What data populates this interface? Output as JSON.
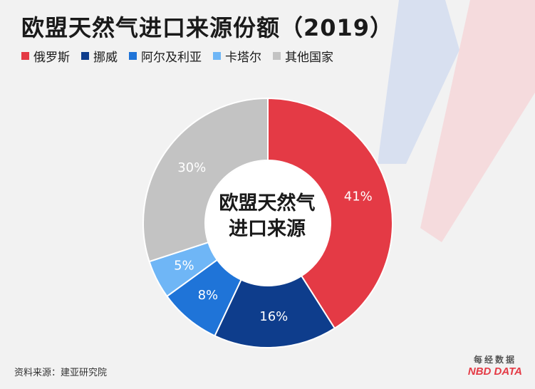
{
  "title": "欧盟天然气进口来源份额（2019）",
  "center_label_line1": "欧盟天然气",
  "center_label_line2": "进口来源",
  "source": "资料来源：建亚研究院",
  "logo": {
    "cn": "每经数据",
    "en": "NBD DATA"
  },
  "colors": {
    "background": "#f2f2f2",
    "brand_red": "#e43a45"
  },
  "chart_data": {
    "type": "pie",
    "donut": true,
    "title": "欧盟天然气进口来源份额（2019）",
    "legend_position": "top-left",
    "categories": [
      "俄罗斯",
      "挪威",
      "阿尔及利亚",
      "卡塔尔",
      "其他国家"
    ],
    "values": [
      41,
      16,
      8,
      5,
      30
    ],
    "labels": [
      "41%",
      "16%",
      "8%",
      "5%",
      "30%"
    ],
    "colors": [
      "#e43a45",
      "#0e3d8c",
      "#1f74d8",
      "#6fb6f6",
      "#c3c3c3"
    ]
  }
}
